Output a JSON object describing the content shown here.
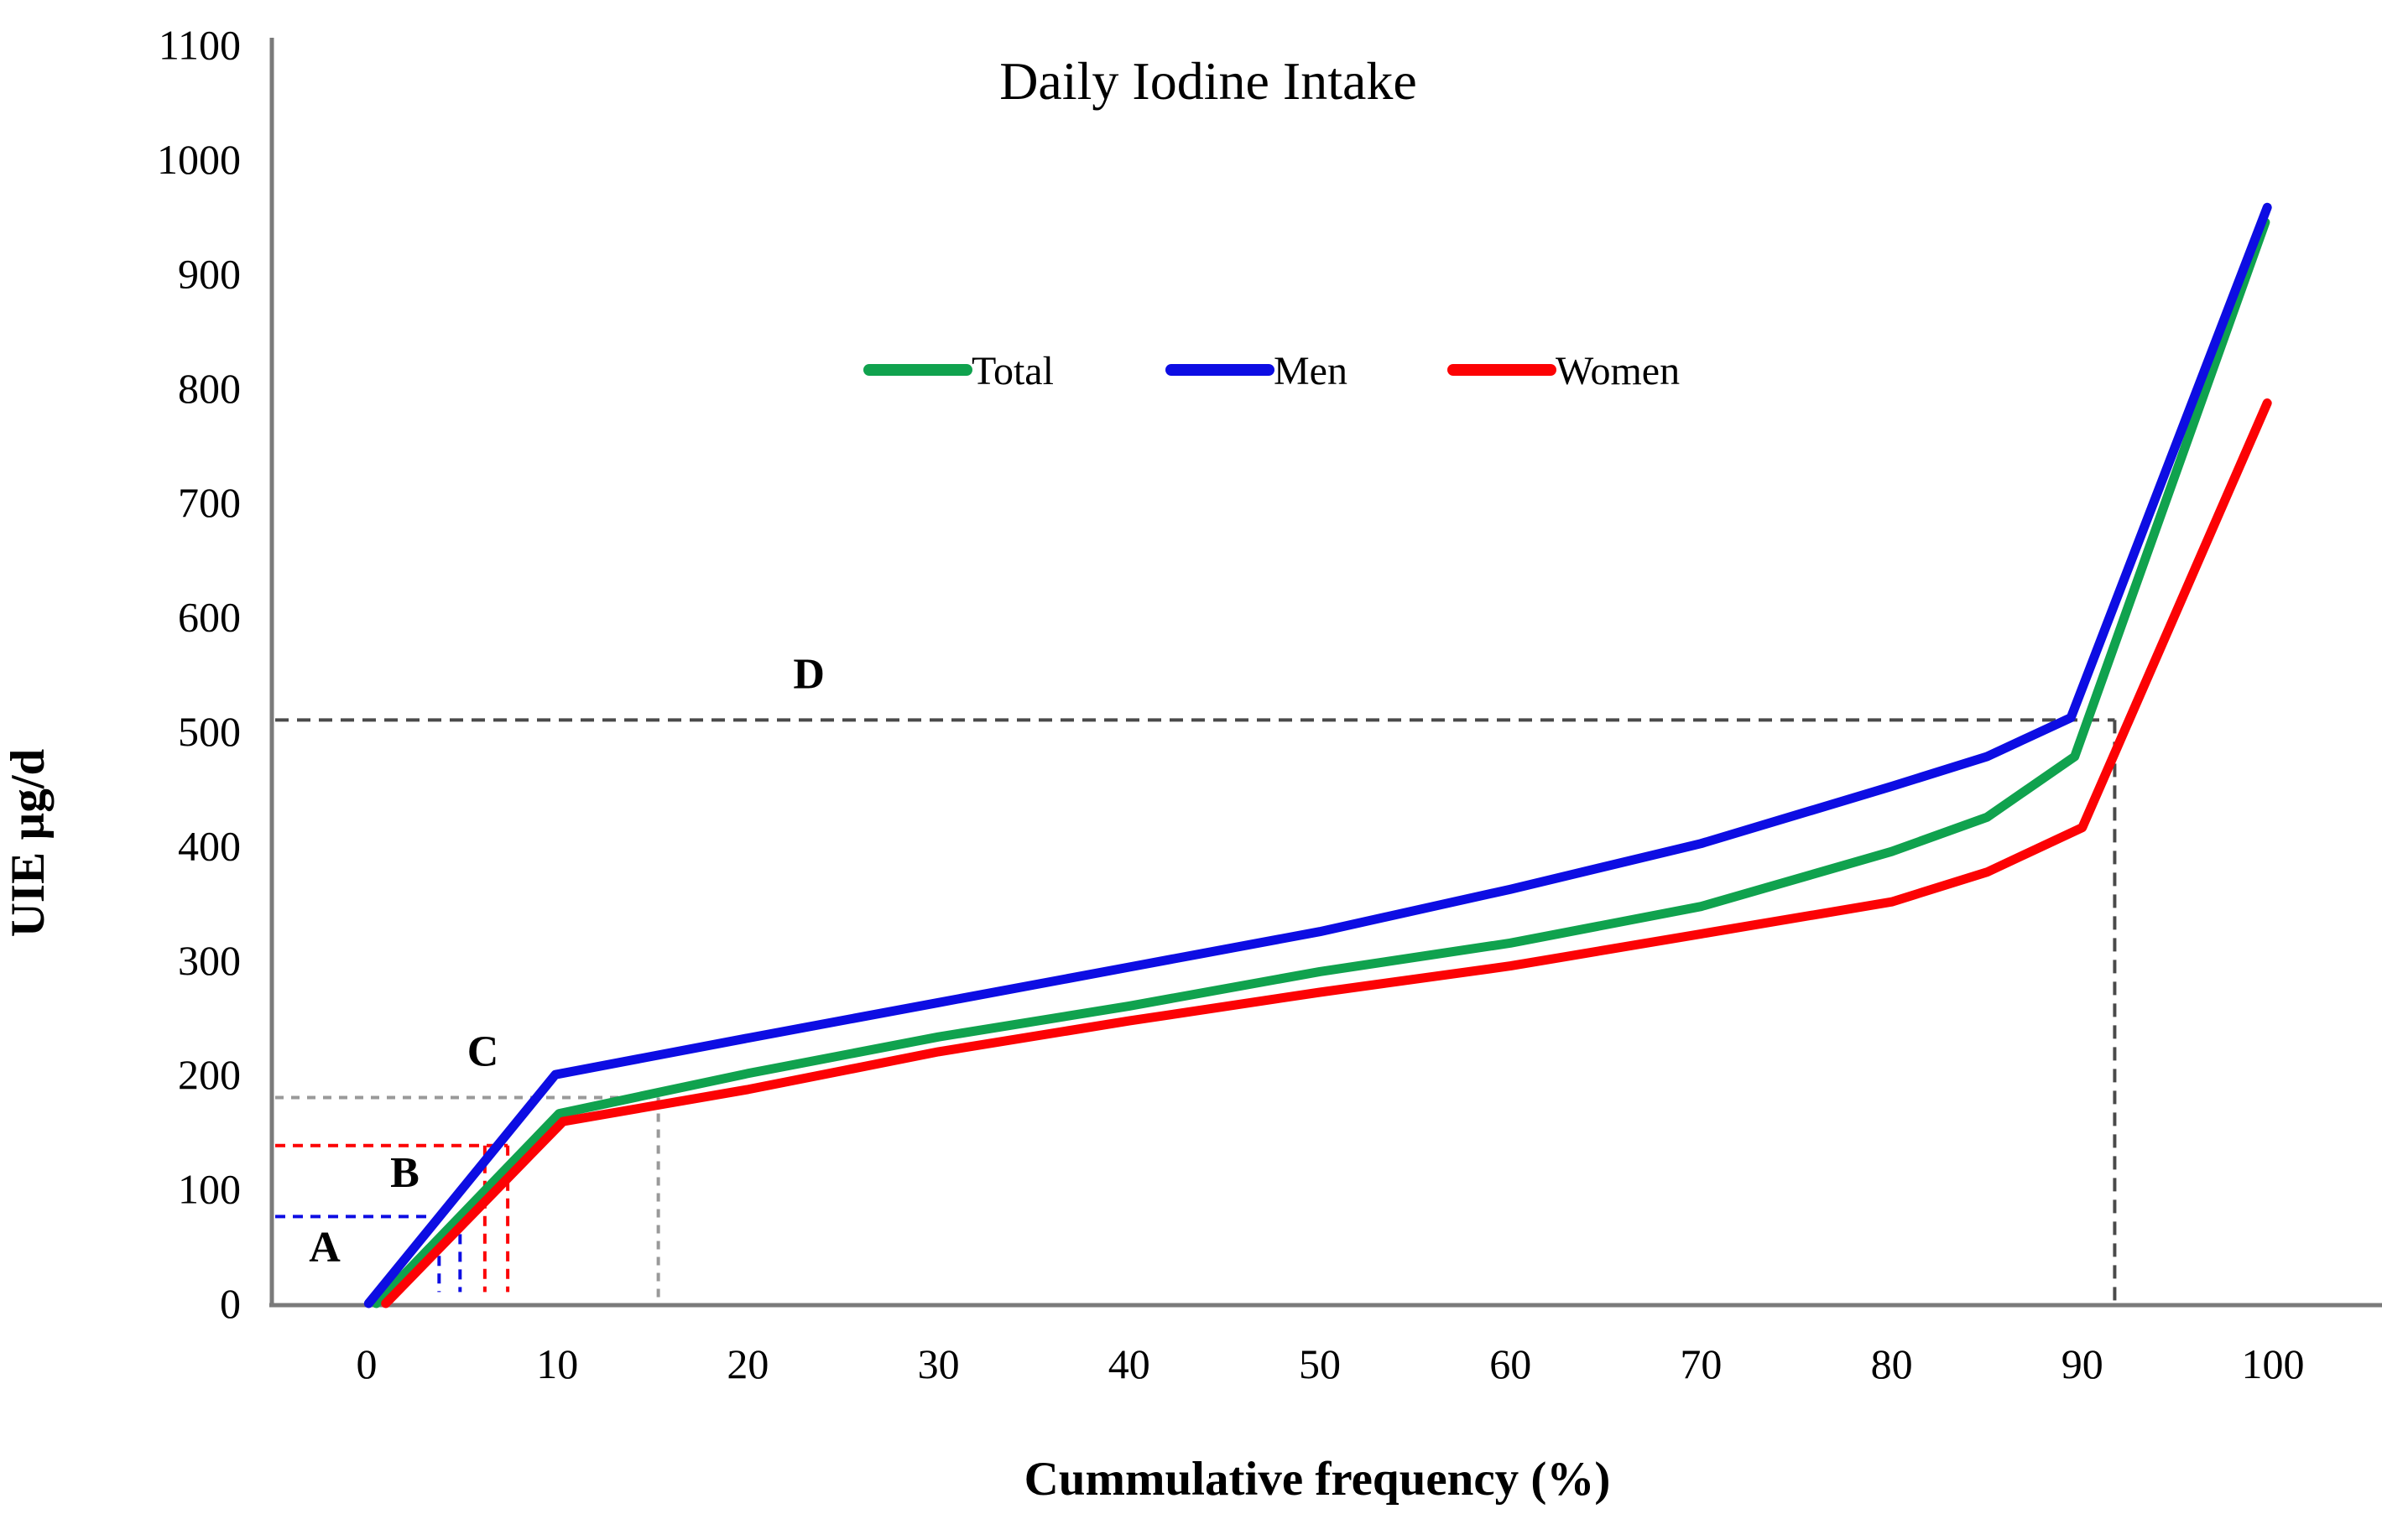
{
  "chart_data": {
    "type": "line",
    "title": "Daily Iodine Intake",
    "xlabel": "Cummulative frequency (%)",
    "ylabel": "UIE µg/d",
    "xlim": [
      0,
      100
    ],
    "ylim": [
      0,
      1100
    ],
    "grid": false,
    "legend_position": "top-center-inside",
    "x_ticks": [
      0,
      10,
      20,
      30,
      40,
      50,
      60,
      70,
      80,
      90,
      100
    ],
    "y_ticks": [
      0,
      100,
      200,
      300,
      400,
      500,
      600,
      700,
      800,
      900,
      1000,
      1100
    ],
    "axis_color": "#7a7a7a",
    "series": [
      {
        "name": "Total",
        "color": "#10a24e",
        "points": [
          [
            0.5,
            0
          ],
          [
            10.1,
            166
          ],
          [
            20,
            201
          ],
          [
            30,
            233
          ],
          [
            40,
            260
          ],
          [
            50,
            290
          ],
          [
            60,
            315
          ],
          [
            70,
            347
          ],
          [
            80,
            395
          ],
          [
            85,
            425
          ],
          [
            89.6,
            478
          ],
          [
            99.6,
            945
          ]
        ]
      },
      {
        "name": "Men",
        "color": "#0d0de3",
        "points": [
          [
            0.1,
            0
          ],
          [
            9.9,
            200
          ],
          [
            20,
            232
          ],
          [
            30,
            263
          ],
          [
            40,
            294
          ],
          [
            50,
            325
          ],
          [
            60,
            362
          ],
          [
            70,
            402
          ],
          [
            80,
            452
          ],
          [
            85,
            478
          ],
          [
            89.4,
            512
          ],
          [
            99.7,
            958
          ]
        ]
      },
      {
        "name": "Women",
        "color": "#fc0204",
        "points": [
          [
            1.0,
            0
          ],
          [
            10.3,
            159
          ],
          [
            20,
            187
          ],
          [
            30,
            220
          ],
          [
            40,
            247
          ],
          [
            50,
            272
          ],
          [
            60,
            295
          ],
          [
            70,
            323
          ],
          [
            80,
            351
          ],
          [
            85,
            377
          ],
          [
            90,
            416
          ],
          [
            99.7,
            787
          ]
        ]
      }
    ],
    "legend": {
      "entries": [
        {
          "label": "Total",
          "color": "#10a24e"
        },
        {
          "label": "Men",
          "color": "#0d0de3"
        },
        {
          "label": "Women",
          "color": "#fc0204"
        }
      ]
    },
    "annotations": {
      "labels": [
        {
          "text": "A",
          "p": -2.2,
          "v": 50
        },
        {
          "text": "B",
          "p": 2.0,
          "v": 115
        },
        {
          "text": "C",
          "p": 6.1,
          "v": 221
        },
        {
          "text": "D",
          "p": 23.2,
          "v": 551
        }
      ],
      "lines": [
        {
          "id": "A",
          "color": "#0d0de3",
          "dash": "12 9",
          "horizontal": {
            "v": 76,
            "p_to": 3.5
          },
          "verticals": [
            {
              "p": 3.8,
              "v_top": 57,
              "v_bot": 10
            },
            {
              "p": 4.9,
              "v_top": 76,
              "v_bot": 10
            }
          ]
        },
        {
          "id": "B",
          "color": "#fc0204",
          "dash": "12 9",
          "horizontal": {
            "v": 138,
            "p_to": 7.4
          },
          "verticals": [
            {
              "p": 6.2,
              "v_top": 138,
              "v_bot": 10
            },
            {
              "p": 7.4,
              "v_top": 138,
              "v_bot": 10
            }
          ]
        },
        {
          "id": "C",
          "color": "#999999",
          "dash": "10 9",
          "horizontal": {
            "v": 180,
            "p_to": 15.3
          },
          "verticals": [
            {
              "p": 15.3,
              "v_top": 180,
              "v_bot": 2
            }
          ]
        },
        {
          "id": "D",
          "color": "#4a4a4a",
          "dash": "16 10",
          "horizontal": {
            "v": 510,
            "p_to": 91.7
          },
          "verticals": [
            {
              "p": 91.7,
              "v_top": 510,
              "v_bot": 2
            }
          ]
        }
      ]
    }
  }
}
